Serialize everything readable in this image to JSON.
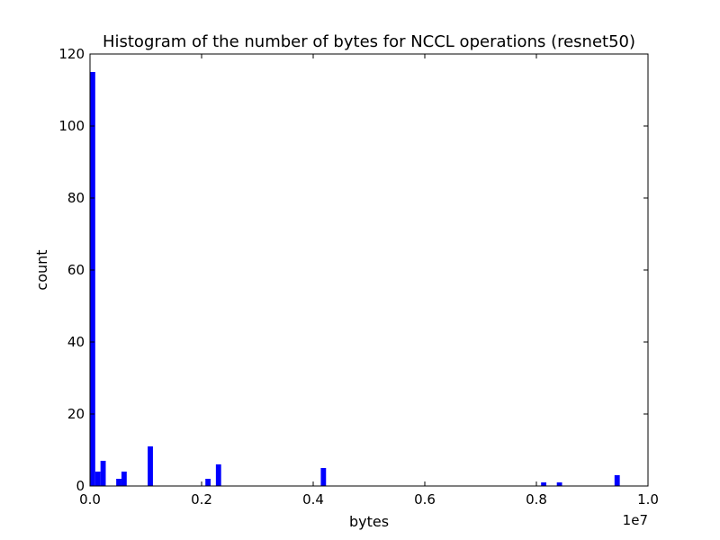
{
  "chart_data": {
    "type": "bar",
    "title": "Histogram of the number of bytes for NCCL operations (resnet50)",
    "xlabel": "bytes",
    "ylabel": "count",
    "x_offset_label": "1e7",
    "xlim": [
      0,
      10000000
    ],
    "ylim": [
      0,
      120
    ],
    "grid": false,
    "bar_color": "#0000ff",
    "bin_width": 94000,
    "x_ticks": [
      {
        "value": 0,
        "label": "0.0"
      },
      {
        "value": 2000000,
        "label": "0.2"
      },
      {
        "value": 4000000,
        "label": "0.4"
      },
      {
        "value": 6000000,
        "label": "0.6"
      },
      {
        "value": 8000000,
        "label": "0.8"
      },
      {
        "value": 10000000,
        "label": "1.0"
      }
    ],
    "y_ticks": [
      {
        "value": 0,
        "label": "0"
      },
      {
        "value": 20,
        "label": "20"
      },
      {
        "value": 40,
        "label": "40"
      },
      {
        "value": 60,
        "label": "60"
      },
      {
        "value": 80,
        "label": "80"
      },
      {
        "value": 100,
        "label": "100"
      },
      {
        "value": 120,
        "label": "120"
      }
    ],
    "bins": [
      {
        "start": 0,
        "count": 115
      },
      {
        "start": 94000,
        "count": 4
      },
      {
        "start": 188000,
        "count": 7
      },
      {
        "start": 470000,
        "count": 2
      },
      {
        "start": 564000,
        "count": 4
      },
      {
        "start": 1034000,
        "count": 11
      },
      {
        "start": 2068000,
        "count": 2
      },
      {
        "start": 2256000,
        "count": 6
      },
      {
        "start": 4136000,
        "count": 5
      },
      {
        "start": 8084000,
        "count": 1
      },
      {
        "start": 8366000,
        "count": 1
      },
      {
        "start": 9400000,
        "count": 3
      }
    ]
  }
}
